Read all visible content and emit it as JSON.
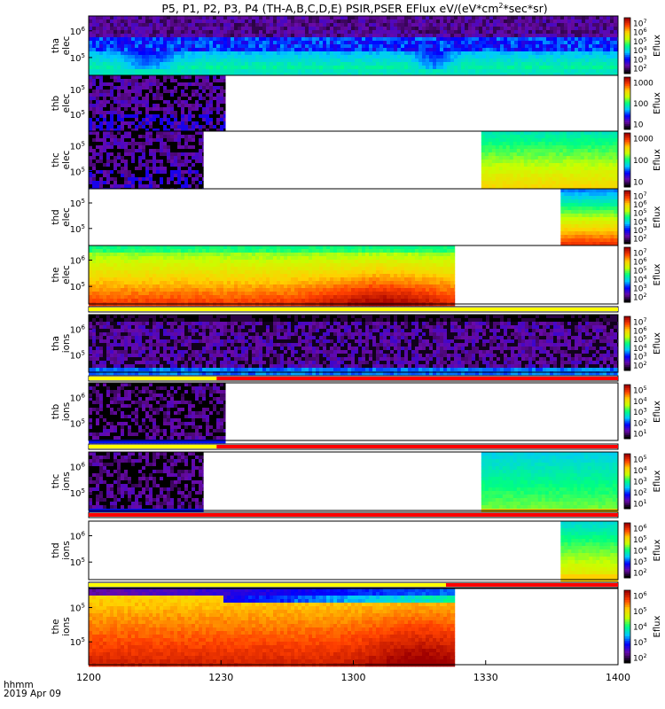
{
  "title": {
    "prefix": "P5, P1, P2, P3, P4 (TH-A,B,C,D,E) PSIR,PSER EFlux eV/(eV*cm",
    "superscript": "2",
    "suffix": "*sec*sr)"
  },
  "footer": {
    "line1": "hhmm",
    "line2": "2019 Apr 09"
  },
  "colors": {
    "background": "#ffffff",
    "frame": "#000000",
    "flag_yellow": "#ffff00",
    "flag_red": "#ff0000",
    "colormap": [
      "#000000",
      "#6a0aa8",
      "#0000ff",
      "#00c8ff",
      "#00ff80",
      "#c8ff00",
      "#ffd000",
      "#ff4000",
      "#a00000"
    ]
  },
  "chart_data": {
    "type": "heatmap",
    "xlabel": "hhmm",
    "x_ticks": [
      "1200",
      "1230",
      "1300",
      "1330",
      "1400"
    ],
    "x_range_minutes": [
      0,
      120
    ],
    "panels": [
      {
        "probe": "tha",
        "species": "elec",
        "y_ticks": [
          "10^6",
          "10^5"
        ],
        "colorbar": {
          "label": "Eflux",
          "ticks": [
            "10^7",
            "10^6",
            "10^5",
            "10^4",
            "10^3",
            "10^2"
          ]
        },
        "segments": [
          {
            "from": 0,
            "to": 120,
            "pattern": "tha_elec"
          }
        ],
        "flag": null
      },
      {
        "probe": "thb",
        "species": "elec",
        "y_ticks": [
          "10^5",
          "10^5"
        ],
        "colorbar": {
          "label": "Eflux",
          "ticks": [
            "1000",
            "100",
            "10"
          ]
        },
        "segments": [
          {
            "from": 0,
            "to": 31,
            "pattern": "sparse"
          }
        ],
        "flag": null
      },
      {
        "probe": "thc",
        "species": "elec",
        "y_ticks": [
          "10^5",
          "10^5"
        ],
        "colorbar": {
          "label": "Eflux",
          "ticks": [
            "1000",
            "100",
            "10"
          ]
        },
        "segments": [
          {
            "from": 0,
            "to": 26,
            "pattern": "sparse"
          },
          {
            "from": 89,
            "to": 120,
            "pattern": "thc_elec_late"
          }
        ],
        "flag": null
      },
      {
        "probe": "thd",
        "species": "elec",
        "y_ticks": [
          "10^5",
          "10^5"
        ],
        "colorbar": {
          "label": "Eflux",
          "ticks": [
            "10^7",
            "10^6",
            "10^5",
            "10^4",
            "10^3",
            "10^2"
          ]
        },
        "segments": [
          {
            "from": 107,
            "to": 120,
            "pattern": "thd_elec"
          }
        ],
        "flag": null
      },
      {
        "probe": "the",
        "species": "elec",
        "y_ticks": [
          "10^6",
          "10^5"
        ],
        "colorbar": {
          "label": "Eflux",
          "ticks": [
            "10^7",
            "10^6",
            "10^5",
            "10^4",
            "10^3",
            "10^2"
          ]
        },
        "segments": [
          {
            "from": 0,
            "to": 83,
            "pattern": "the_elec"
          }
        ],
        "flag": [
          {
            "from": 0,
            "to": 120,
            "color": "yellow"
          }
        ]
      },
      {
        "probe": "tha",
        "species": "ions",
        "y_ticks": [
          "10^6",
          "10^5"
        ],
        "colorbar": {
          "label": "Eflux",
          "ticks": [
            "10^7",
            "10^6",
            "10^5",
            "10^4",
            "10^3",
            "10^2"
          ]
        },
        "segments": [
          {
            "from": 0,
            "to": 120,
            "pattern": "tha_ions"
          }
        ],
        "flag": [
          {
            "from": 0,
            "to": 29,
            "color": "yellow"
          },
          {
            "from": 29,
            "to": 120,
            "color": "red"
          }
        ]
      },
      {
        "probe": "thb",
        "species": "ions",
        "y_ticks": [
          "10^6",
          "10^5"
        ],
        "colorbar": {
          "label": "Eflux",
          "ticks": [
            "10^5",
            "10^4",
            "10^3",
            "10^2",
            "10^1"
          ]
        },
        "segments": [
          {
            "from": 0,
            "to": 31,
            "pattern": "sparse_ions"
          }
        ],
        "flag": [
          {
            "from": 0,
            "to": 29,
            "color": "yellow"
          },
          {
            "from": 29,
            "to": 120,
            "color": "red"
          }
        ]
      },
      {
        "probe": "thc",
        "species": "ions",
        "y_ticks": [
          "10^6",
          "10^5"
        ],
        "colorbar": {
          "label": "Eflux",
          "ticks": [
            "10^5",
            "10^4",
            "10^3",
            "10^2",
            "10^1"
          ]
        },
        "segments": [
          {
            "from": 0,
            "to": 26,
            "pattern": "sparse_ions"
          },
          {
            "from": 89,
            "to": 120,
            "pattern": "thc_ions_late"
          }
        ],
        "flag": [
          {
            "from": 0,
            "to": 120,
            "color": "red"
          }
        ]
      },
      {
        "probe": "thd",
        "species": "ions",
        "y_ticks": [
          "10^6",
          "10^5"
        ],
        "colorbar": {
          "label": "Eflux",
          "ticks": [
            "10^6",
            "10^5",
            "10^4",
            "10^3",
            "10^2"
          ]
        },
        "segments": [
          {
            "from": 107,
            "to": 120,
            "pattern": "thd_ions"
          }
        ],
        "flag": [
          {
            "from": 0,
            "to": 81,
            "color": "yellow"
          },
          {
            "from": 81,
            "to": 120,
            "color": "red"
          }
        ]
      },
      {
        "probe": "the",
        "species": "ions",
        "y_ticks": [
          "10^5",
          "10^5"
        ],
        "colorbar": {
          "label": "Eflux",
          "ticks": [
            "10^6",
            "10^5",
            "10^4",
            "10^3",
            "10^2"
          ]
        },
        "segments": [
          {
            "from": 0,
            "to": 83,
            "pattern": "the_ions"
          }
        ],
        "flag": null
      }
    ]
  }
}
